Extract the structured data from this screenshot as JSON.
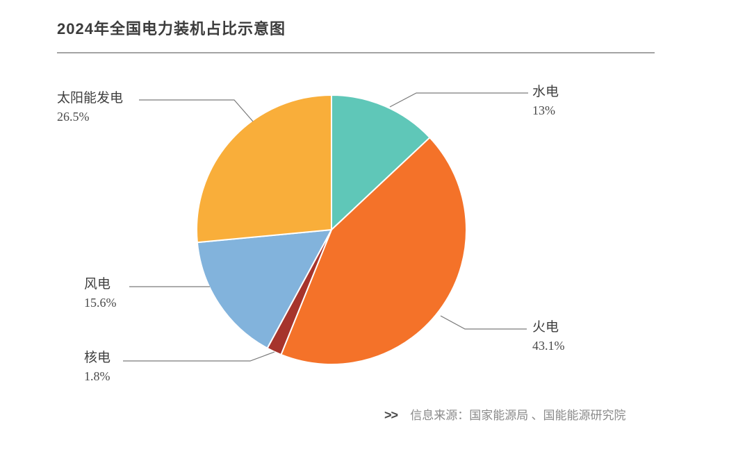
{
  "page": {
    "title": "2024年全国电力装机占比示意图",
    "source_prefix": ">>",
    "source_text": "信息来源：国家能源局 、国能能源研究院"
  },
  "chart_data": {
    "type": "pie",
    "title": "2024年全国电力装机占比示意图",
    "unit": "%",
    "direction": "clockwise",
    "start_angle_deg": 0,
    "legend_position": "callout-labels",
    "separator_color": "#ffffff",
    "series": [
      {
        "key": "hydro",
        "label": "水电",
        "value": 13.0,
        "display": "13%",
        "color": "#5fc7b8"
      },
      {
        "key": "thermal",
        "label": "火电",
        "value": 43.1,
        "display": "43.1%",
        "color": "#f47229"
      },
      {
        "key": "nuclear",
        "label": "核电",
        "value": 1.8,
        "display": "1.8%",
        "color": "#a6342c"
      },
      {
        "key": "wind",
        "label": "风电",
        "value": 15.6,
        "display": "15.6%",
        "color": "#82b3dc"
      },
      {
        "key": "solar",
        "label": "太阳能发电",
        "value": 26.5,
        "display": "26.5%",
        "color": "#f9ae3a"
      }
    ],
    "source_note": "信息来源：国家能源局 、国能能源研究院"
  }
}
